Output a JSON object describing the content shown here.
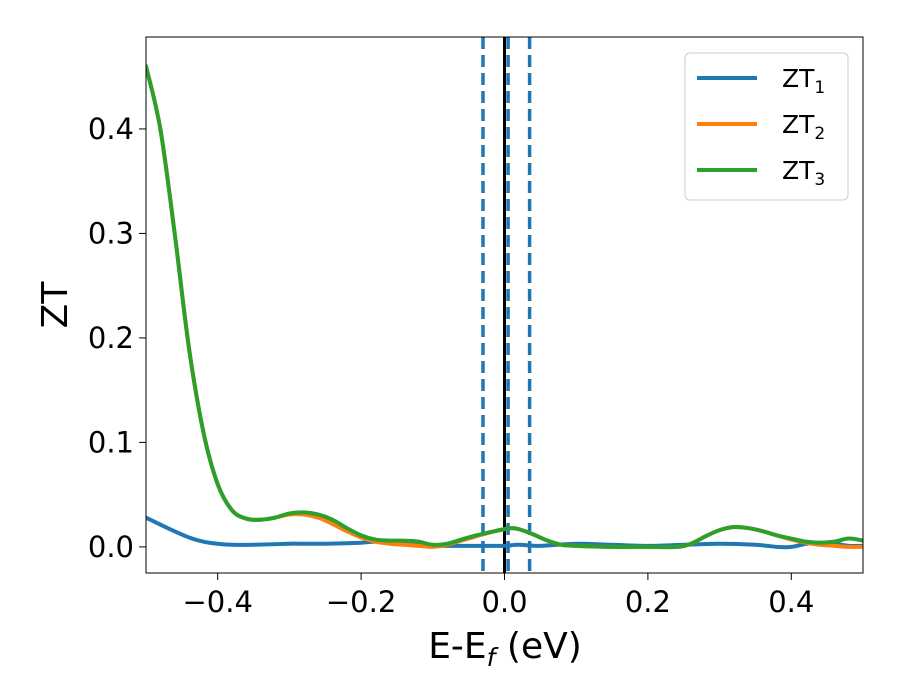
{
  "chart_data": {
    "type": "line",
    "xlabel": "E-E",
    "xlabel_sub": "f",
    "xlabel_unit": " (eV)",
    "ylabel": "ZT",
    "xlim": [
      -0.5,
      0.5
    ],
    "ylim": [
      -0.025,
      0.488
    ],
    "xticks": [
      -0.4,
      -0.2,
      0.0,
      0.2,
      0.4
    ],
    "xtick_labels": [
      "−0.4",
      "−0.2",
      "0.0",
      "0.2",
      "0.4"
    ],
    "yticks": [
      0.0,
      0.1,
      0.2,
      0.3,
      0.4
    ],
    "ytick_labels": [
      "0.0",
      "0.1",
      "0.2",
      "0.3",
      "0.4"
    ],
    "grid": false,
    "legend_position": "top-right",
    "vertical_lines": [
      {
        "x": 0.0,
        "color": "#000000",
        "style": "solid"
      },
      {
        "x": -0.03,
        "color": "#1f77b4",
        "style": "dashed"
      },
      {
        "x": 0.005,
        "color": "#1f77b4",
        "style": "dashed"
      },
      {
        "x": 0.035,
        "color": "#1f77b4",
        "style": "dashed"
      }
    ],
    "series": [
      {
        "name": "ZT",
        "name_sub": "1",
        "color": "#1f77b4",
        "x": [
          -0.5,
          -0.47,
          -0.44,
          -0.42,
          -0.4,
          -0.38,
          -0.35,
          -0.3,
          -0.28,
          -0.25,
          -0.2,
          -0.18,
          -0.15,
          -0.12,
          -0.1,
          -0.08,
          -0.05,
          -0.02,
          0.0,
          0.02,
          0.05,
          0.1,
          0.15,
          0.2,
          0.25,
          0.3,
          0.35,
          0.38,
          0.4,
          0.43,
          0.46,
          0.48,
          0.5
        ],
        "y": [
          0.028,
          0.018,
          0.009,
          0.005,
          0.003,
          0.002,
          0.002,
          0.003,
          0.003,
          0.003,
          0.004,
          0.005,
          0.004,
          0.002,
          0.001,
          0.001,
          0.001,
          0.001,
          0.001,
          0.002,
          0.001,
          0.003,
          0.002,
          0.001,
          0.002,
          0.003,
          0.002,
          0.0,
          0.0,
          0.004,
          0.003,
          0.001,
          0.001
        ]
      },
      {
        "name": "ZT",
        "name_sub": "2",
        "color": "#ff7f0e",
        "x": [
          -0.5,
          -0.48,
          -0.46,
          -0.44,
          -0.42,
          -0.4,
          -0.38,
          -0.36,
          -0.34,
          -0.32,
          -0.3,
          -0.28,
          -0.26,
          -0.24,
          -0.22,
          -0.2,
          -0.18,
          -0.16,
          -0.14,
          -0.12,
          -0.1,
          -0.08,
          -0.06,
          -0.04,
          -0.02,
          0.0,
          0.01,
          0.02,
          0.04,
          0.06,
          0.08,
          0.1,
          0.15,
          0.2,
          0.24,
          0.26,
          0.28,
          0.3,
          0.32,
          0.34,
          0.36,
          0.38,
          0.4,
          0.42,
          0.44,
          0.46,
          0.48,
          0.5
        ],
        "y": [
          0.46,
          0.4,
          0.3,
          0.19,
          0.11,
          0.06,
          0.035,
          0.027,
          0.026,
          0.028,
          0.031,
          0.031,
          0.028,
          0.022,
          0.015,
          0.009,
          0.005,
          0.003,
          0.002,
          0.001,
          0.0,
          0.002,
          0.006,
          0.01,
          0.014,
          0.017,
          0.018,
          0.017,
          0.012,
          0.006,
          0.002,
          0.001,
          0.0,
          0.0,
          0.0,
          0.003,
          0.01,
          0.016,
          0.019,
          0.018,
          0.015,
          0.011,
          0.007,
          0.004,
          0.002,
          0.001,
          0.0,
          0.0
        ]
      },
      {
        "name": "ZT",
        "name_sub": "3",
        "color": "#2ca02c",
        "x": [
          -0.5,
          -0.48,
          -0.46,
          -0.44,
          -0.42,
          -0.4,
          -0.38,
          -0.36,
          -0.34,
          -0.32,
          -0.3,
          -0.28,
          -0.26,
          -0.24,
          -0.22,
          -0.2,
          -0.18,
          -0.16,
          -0.14,
          -0.12,
          -0.1,
          -0.08,
          -0.06,
          -0.04,
          -0.02,
          0.0,
          0.01,
          0.02,
          0.04,
          0.06,
          0.08,
          0.1,
          0.15,
          0.2,
          0.24,
          0.26,
          0.28,
          0.3,
          0.32,
          0.34,
          0.36,
          0.38,
          0.4,
          0.42,
          0.44,
          0.46,
          0.48,
          0.5
        ],
        "y": [
          0.46,
          0.4,
          0.3,
          0.19,
          0.11,
          0.06,
          0.035,
          0.027,
          0.026,
          0.028,
          0.032,
          0.033,
          0.031,
          0.026,
          0.018,
          0.011,
          0.007,
          0.006,
          0.006,
          0.005,
          0.002,
          0.003,
          0.007,
          0.011,
          0.014,
          0.017,
          0.018,
          0.017,
          0.012,
          0.006,
          0.002,
          0.001,
          0.0,
          0.0,
          0.0,
          0.003,
          0.01,
          0.016,
          0.019,
          0.018,
          0.015,
          0.011,
          0.008,
          0.005,
          0.004,
          0.005,
          0.008,
          0.006
        ]
      }
    ]
  }
}
